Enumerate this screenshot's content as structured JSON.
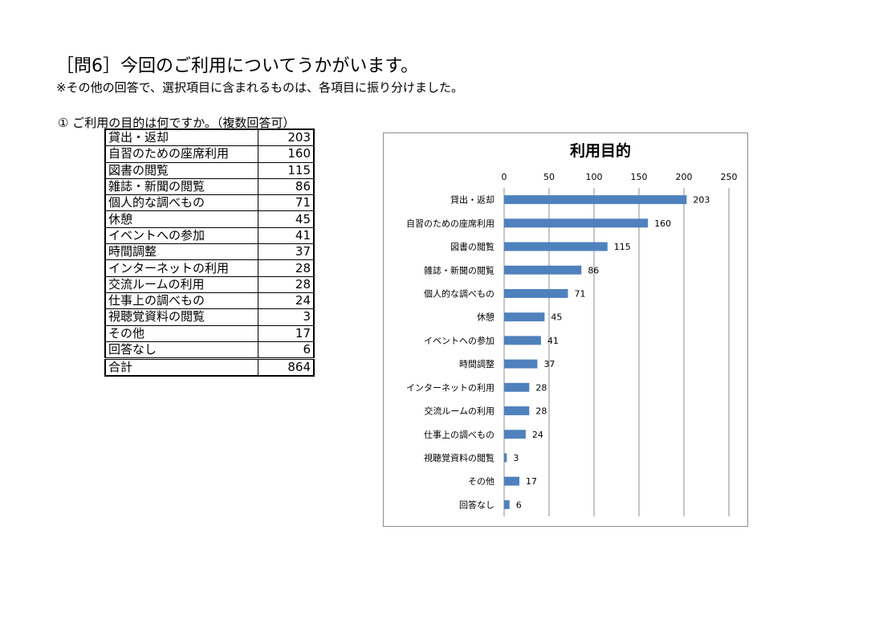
{
  "header": {
    "title": "［問6］今回のご利用についてうかがいます。",
    "note": "※その他の回答で、選択項目に含まれるものは、各項目に振り分けました。",
    "question": "①  ご利用の目的は何ですか。（複数回答可）"
  },
  "table": {
    "rows": [
      {
        "label": "貸出・返却",
        "value": "203"
      },
      {
        "label": "自習のための座席利用",
        "value": "160"
      },
      {
        "label": "図書の閲覧",
        "value": "115"
      },
      {
        "label": "雑誌・新聞の閲覧",
        "value": "86"
      },
      {
        "label": "個人的な調べもの",
        "value": "71"
      },
      {
        "label": "休憩",
        "value": "45"
      },
      {
        "label": "イベントへの参加",
        "value": "41"
      },
      {
        "label": "時間調整",
        "value": "37"
      },
      {
        "label": "インターネットの利用",
        "value": "28"
      },
      {
        "label": "交流ルームの利用",
        "value": "28"
      },
      {
        "label": "仕事上の調べもの",
        "value": "24"
      },
      {
        "label": "視聴覚資料の閲覧",
        "value": "3"
      },
      {
        "label": "その他",
        "value": "17"
      },
      {
        "label": "回答なし",
        "value": "6"
      }
    ],
    "total": {
      "label": "合計",
      "value": "864"
    }
  },
  "chart_data": {
    "type": "bar",
    "orientation": "horizontal",
    "title": "利用目的",
    "categories": [
      "貸出・返却",
      "自習のための座席利用",
      "図書の閲覧",
      "雑誌・新聞の閲覧",
      "個人的な調べもの",
      "休憩",
      "イベントへの参加",
      "時間調整",
      "インターネットの利用",
      "交流ルームの利用",
      "仕事上の調べもの",
      "視聴覚資料の閲覧",
      "その他",
      "回答なし"
    ],
    "values": [
      203,
      160,
      115,
      86,
      71,
      45,
      41,
      37,
      28,
      28,
      24,
      3,
      17,
      6
    ],
    "xlim": [
      0,
      250
    ],
    "xticks": [
      0,
      50,
      100,
      150,
      200,
      250
    ],
    "x_axis_position": "top",
    "grid": true,
    "data_labels": true,
    "legend": "none",
    "bar_color": "#4f81bd"
  }
}
